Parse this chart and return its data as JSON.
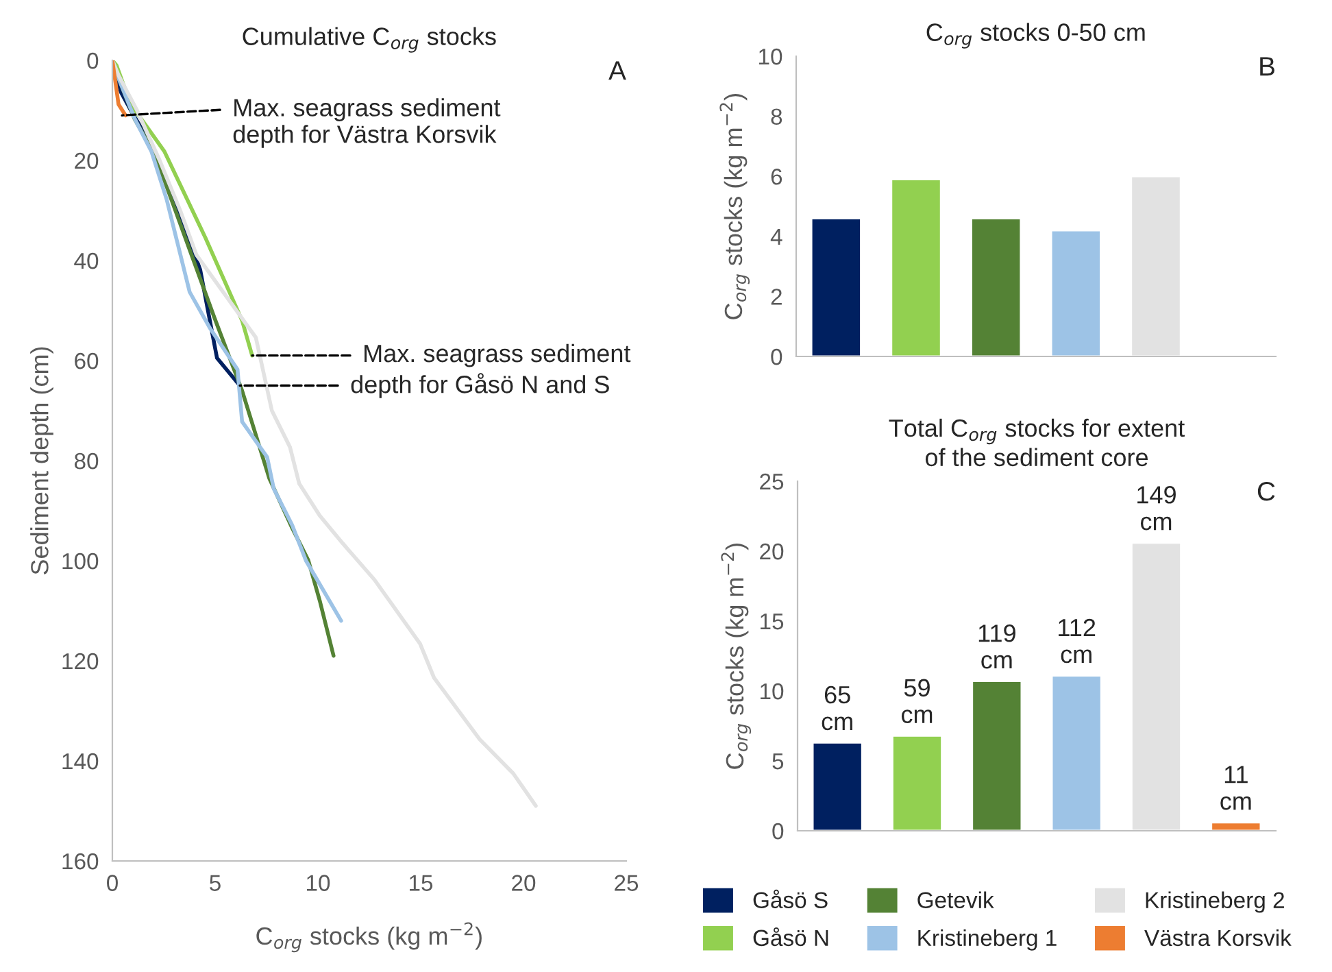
{
  "chart_data": [
    {
      "type": "line",
      "title": "Cumulative C$_{org}$ stocks",
      "xlabel": "C$_{org}$ stocks (kg m$^{−2}$)",
      "ylabel": "Sediment depth (cm)",
      "xlim": [
        0,
        25
      ],
      "xticks": [
        0,
        5,
        10,
        15,
        20,
        25
      ],
      "ylim": [
        160,
        0
      ],
      "yticks": [
        0,
        20,
        40,
        60,
        80,
        100,
        120,
        140,
        160
      ],
      "grid": false,
      "marker": "none",
      "line_style": "solid",
      "legend": "bottom right",
      "series": [
        {
          "name": "Gåsö S",
          "color": "#002060",
          "x": [
            0,
            0.42,
            0.98,
            1.98,
            2.98,
            4.27,
            5.09,
            6.2
          ],
          "values": [
            0,
            6.4,
            10.6,
            17.4,
            27.4,
            41.8,
            59.5,
            65
          ]
        },
        {
          "name": "Gåsö N",
          "color": "#92d050",
          "x": [
            0,
            0.2,
            0.87,
            2.53,
            4.53,
            6.31,
            6.8
          ],
          "values": [
            0,
            1,
            8.6,
            18.2,
            35.5,
            52,
            59
          ]
        },
        {
          "name": "Getevik",
          "color": "#548235",
          "x": [
            0,
            0.3,
            1.09,
            2.09,
            3.64,
            4.98,
            6.31,
            7.63,
            8.75,
            9.53,
            10.09,
            10.76
          ],
          "values": [
            0,
            3.6,
            11.8,
            19,
            36.5,
            51.6,
            66,
            83.5,
            93.5,
            99.9,
            108,
            119
          ]
        },
        {
          "name": "Kristineberg 1",
          "color": "#9dc3e6",
          "x": [
            0,
            0.3,
            1.1,
            1.9,
            2.64,
            3.76,
            4.76,
            6.09,
            6.31,
            7.53,
            7.85,
            8.75,
            9.42,
            11.13
          ],
          "values": [
            0,
            3.6,
            11.8,
            18.2,
            27.8,
            46.3,
            53.6,
            61.8,
            72.2,
            79.3,
            85.6,
            92.9,
            100,
            112
          ]
        },
        {
          "name": "Kristineberg 2",
          "color": "#e2e2e2",
          "x": [
            0,
            0.3,
            1.2,
            2.3,
            3.3,
            4.09,
            6.98,
            7.76,
            8.64,
            9.09,
            10.09,
            11.2,
            12.75,
            14.97,
            15.65,
            17.87,
            19.5,
            20.6
          ],
          "values": [
            0,
            3,
            10,
            20,
            30,
            38.9,
            55.4,
            70,
            77.3,
            84.6,
            91,
            96.5,
            103.8,
            116.6,
            123.4,
            135.7,
            142.5,
            149
          ]
        },
        {
          "name": "Västra Korsvik",
          "color": "#ed7d31",
          "x": [
            0,
            0.3,
            0.64
          ],
          "values": [
            0,
            8.8,
            11
          ]
        }
      ],
      "annotations": [
        "A",
        {
          "text": "Max. seagrass sediment\ndepth for Västra Korsvik",
          "x": 0.47,
          "y": 11
        },
        {
          "text": "Max. seagrass sediment",
          "x": 6.8,
          "y": 59
        },
        {
          "text": "depth for Gåsö N and S",
          "x": 6.2,
          "y": 65
        }
      ]
    },
    {
      "type": "bar",
      "title": "C$_{org}$ stocks 0-50 cm",
      "ylabel": "C$_{org}$ stocks (kg m$^{−2}$)",
      "categories": [
        null,
        null,
        null,
        null,
        null,
        null
      ],
      "values": [
        4.6,
        5.9,
        4.6,
        4.2,
        6.0,
        null
      ],
      "colors": [
        "#002060",
        "#92d050",
        "#548235",
        "#9dc3e6",
        "#e2e2e2",
        "#ed7d31"
      ],
      "ylim": [
        0,
        10
      ],
      "yticks": [
        0,
        2,
        4,
        6,
        8,
        10
      ],
      "grid": false,
      "annotations": [
        "B"
      ]
    },
    {
      "type": "bar",
      "title": "Total C$_{org}$ stocks for extent\nof the sediment core",
      "ylabel": "C$_{org}$ stocks (kg m$^{−2}$)",
      "categories": [
        null,
        null,
        null,
        null,
        null,
        null
      ],
      "values": [
        6.3,
        6.8,
        10.7,
        11.1,
        20.6,
        0.6
      ],
      "colors": [
        "#002060",
        "#92d050",
        "#548235",
        "#9dc3e6",
        "#e2e2e2",
        "#ed7d31"
      ],
      "ylim": [
        0,
        25
      ],
      "yticks": [
        0,
        5,
        10,
        15,
        20,
        25
      ],
      "grid": false,
      "annotations": [
        "C",
        {
          "text": "65\ncm",
          "y": 6.3
        },
        {
          "text": "59\ncm",
          "y": 6.8
        },
        {
          "text": "119\ncm",
          "y": 10.7
        },
        {
          "text": "112\ncm",
          "y": 11.1
        },
        {
          "text": "149\ncm",
          "y": 20.6
        },
        {
          "text": "11\ncm",
          "y": 0.6
        }
      ]
    }
  ]
}
